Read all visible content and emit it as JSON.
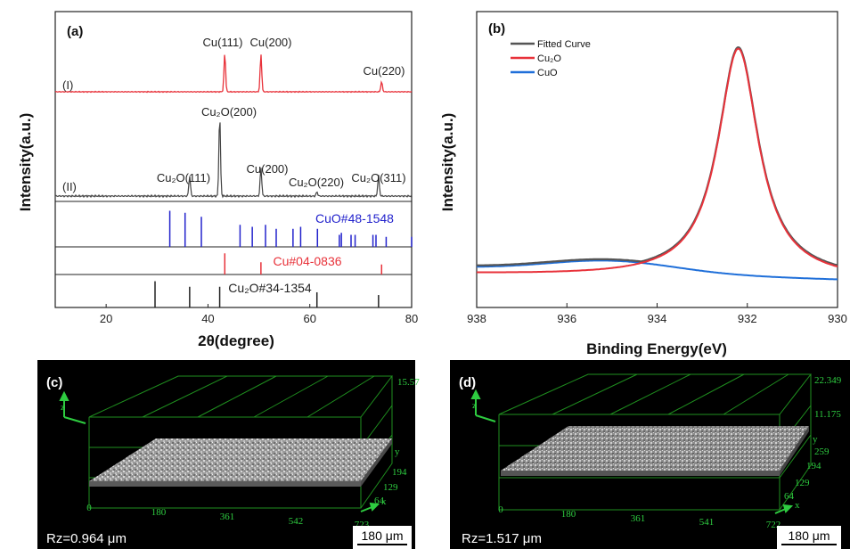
{
  "chart_data": [
    {
      "panel": "(a)",
      "type": "line",
      "xlabel": "2θ(degree)",
      "ylabel": "Intensity(a.u.)",
      "xlim": [
        10,
        80
      ],
      "xticks": [
        "20",
        "40",
        "60",
        "80"
      ],
      "grid": false,
      "series": [
        {
          "name": "(I)",
          "color": "#e8323a",
          "peaks": [
            {
              "x": 43.3,
              "height": 0.95,
              "label": "Cu(111)"
            },
            {
              "x": 50.4,
              "height": 0.92,
              "label": "Cu(200)"
            },
            {
              "x": 74.1,
              "height": 0.25,
              "label": "Cu(220)"
            }
          ]
        },
        {
          "name": "(II)",
          "color": "#444444",
          "peaks": [
            {
              "x": 36.4,
              "height": 0.25,
              "label": "Cu₂O(111)"
            },
            {
              "x": 42.3,
              "height": 1.0,
              "label": "Cu₂O(200)"
            },
            {
              "x": 50.4,
              "height": 0.35,
              "label": "Cu(200)"
            },
            {
              "x": 61.4,
              "height": 0.05,
              "label": "Cu₂O(220)"
            },
            {
              "x": 73.5,
              "height": 0.25,
              "label": "Cu₂O(311)"
            }
          ]
        }
      ],
      "references": [
        {
          "label": "CuO#48-1548",
          "color": "#2222cc",
          "lines": [
            32.5,
            35.5,
            38.7,
            46.3,
            48.7,
            51.3,
            53.4,
            56.7,
            58.2,
            61.5,
            65.8,
            66.2,
            68.1,
            68.9,
            72.4,
            73.0,
            75.0,
            80.0
          ],
          "heights": [
            0.9,
            0.85,
            0.75,
            0.55,
            0.5,
            0.55,
            0.45,
            0.45,
            0.5,
            0.45,
            0.3,
            0.35,
            0.3,
            0.3,
            0.3,
            0.3,
            0.25,
            0.25
          ]
        },
        {
          "label": "Cu#04-0836",
          "color": "#e8323a",
          "lines": [
            43.3,
            50.4,
            74.1
          ],
          "heights": [
            0.95,
            0.55,
            0.45
          ]
        },
        {
          "label": "Cu₂O#34-1354",
          "color": "#222222",
          "lines": [
            29.6,
            36.4,
            42.3,
            61.4,
            73.5
          ],
          "heights": [
            0.95,
            0.75,
            0.75,
            0.55,
            0.45
          ]
        }
      ]
    },
    {
      "panel": "(b)",
      "type": "line",
      "xlabel": "Binding Energy(eV)",
      "ylabel": "Intensity(a.u.)",
      "xlim": [
        938,
        930
      ],
      "xticks": [
        "938",
        "936",
        "934",
        "932",
        "930"
      ],
      "grid": false,
      "legend": "top-left",
      "series": [
        {
          "name": "Fitted Curve",
          "color": "#555555"
        },
        {
          "name": "Cu₂O",
          "color": "#e8323a",
          "center": 932.2,
          "fwhm": 1.1,
          "amplitude": 1.0
        },
        {
          "name": "CuO",
          "color": "#1f6fd9",
          "center": 935.0,
          "fwhm": 3.2,
          "amplitude": 0.05
        }
      ]
    }
  ],
  "panel_c": {
    "label": "(c)",
    "z_max": "15.57",
    "x_ticks": [
      "0",
      "180",
      "361",
      "542",
      "723"
    ],
    "y_ticks": [
      "64",
      "129",
      "194"
    ],
    "axis_labels": {
      "x": "x",
      "y": "y",
      "z": "z"
    },
    "rz": "Rz=0.964 μm",
    "scale": "180 μm"
  },
  "panel_d": {
    "label": "(d)",
    "z_max": "22.349",
    "z_mid": "11.175",
    "x_ticks": [
      "0",
      "180",
      "361",
      "541",
      "722"
    ],
    "y_ticks": [
      "64",
      "129",
      "194",
      "259"
    ],
    "axis_labels": {
      "x": "x",
      "y": "y",
      "z": "z"
    },
    "rz": "Rz=1.517 μm",
    "scale": "180 μm"
  }
}
